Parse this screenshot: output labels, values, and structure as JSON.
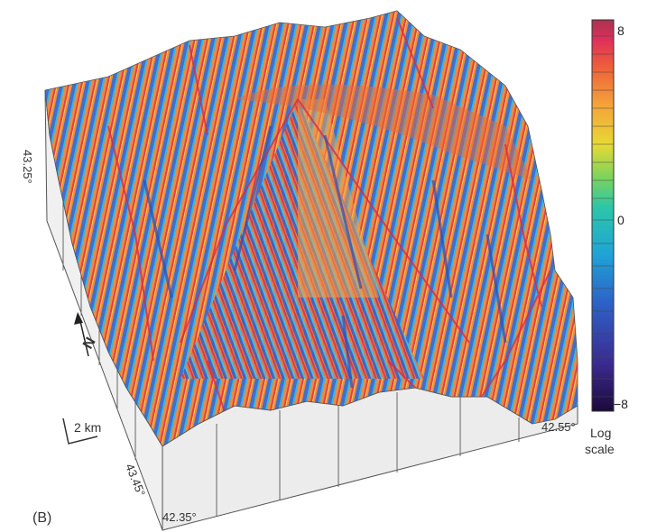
{
  "panel_label": "(B)",
  "axis_labels": {
    "lat_top": "43.25°",
    "lat_bottom": "43.45°",
    "lon_left": "42.35°",
    "lon_right": "42.55°"
  },
  "scale_bar": {
    "label": "2 km"
  },
  "north_arrow": {
    "label": "N"
  },
  "colorbar": {
    "tick_max": "8",
    "tick_mid": "0",
    "tick_min": "−8",
    "title_line1": "Log",
    "title_line2": "scale",
    "colors": [
      "#2a0a4a",
      "#3b2a8f",
      "#2d63c8",
      "#1fa3d6",
      "#2cc6a8",
      "#7fd35a",
      "#e6d935",
      "#f4a53a",
      "#ee5f3a",
      "#de2f5b",
      "#b43450"
    ]
  }
}
